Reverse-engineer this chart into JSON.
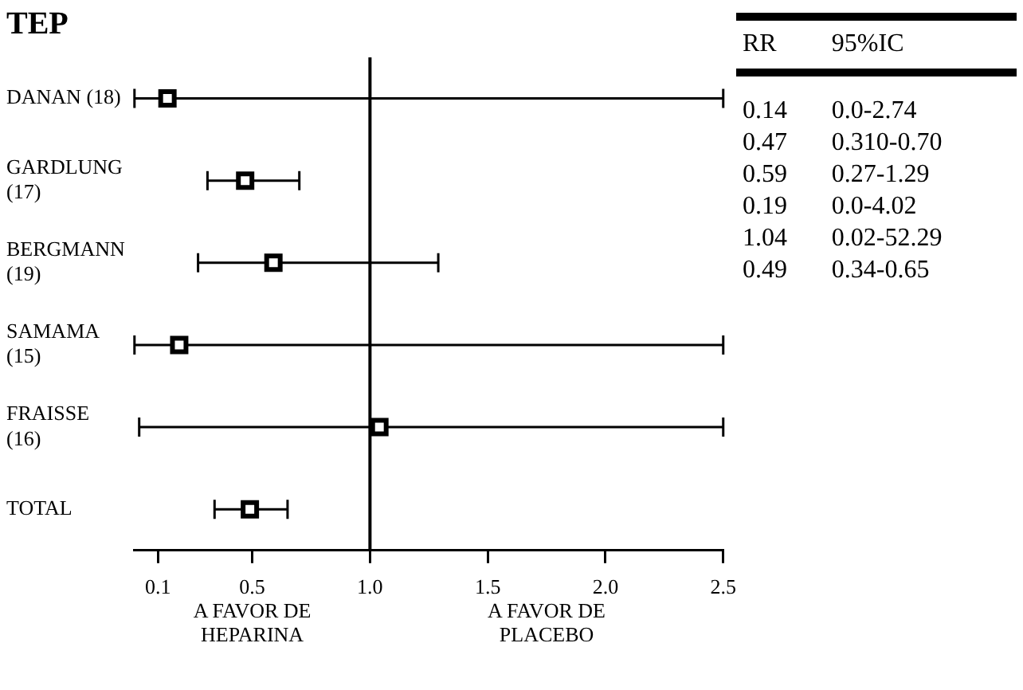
{
  "chart_data": {
    "type": "scatter",
    "orientation": "horizontal",
    "title": "TEP",
    "categories": [
      "DANAN (18)",
      "GARDLUNG (17)",
      "BERGMANN (19)",
      "SAMAMA (15)",
      "FRAISSE (16)",
      "TOTAL"
    ],
    "values": [
      0.14,
      0.47,
      0.59,
      0.19,
      1.04,
      0.49
    ],
    "errors": [
      [
        0.0,
        2.5
      ],
      [
        0.31,
        0.7
      ],
      [
        0.27,
        1.29
      ],
      [
        0.0,
        2.5
      ],
      [
        0.02,
        2.5
      ],
      [
        0.34,
        0.65
      ]
    ],
    "color": "#000000",
    "marker": "square",
    "grid": false,
    "legend": false,
    "xlim": [
      0,
      2.5
    ],
    "xticks": [
      {
        "value": 0.1,
        "label": "0.1"
      },
      {
        "value": 0.5,
        "label": "0.5"
      },
      {
        "value": 1.0,
        "label": "1.0"
      },
      {
        "value": 1.5,
        "label": "1.5"
      },
      {
        "value": 2.0,
        "label": "2.0"
      },
      {
        "value": 2.5,
        "label": "2.5"
      }
    ],
    "ref_lines": [
      {
        "axis": "x",
        "value": 1.0
      }
    ],
    "annotations": [
      "A FAVOR DE HEPARINA",
      "A FAVOR DE PLACEBO",
      "RR",
      "95%IC",
      "0.14",
      "0.0-2.74",
      "0.47",
      "0.310-0.70",
      "0.59",
      "0.27-1.29",
      "0.19",
      "0.0-4.02",
      "1.04",
      "0.02-52.29",
      "0.49",
      "0.34-0.65"
    ]
  }
}
